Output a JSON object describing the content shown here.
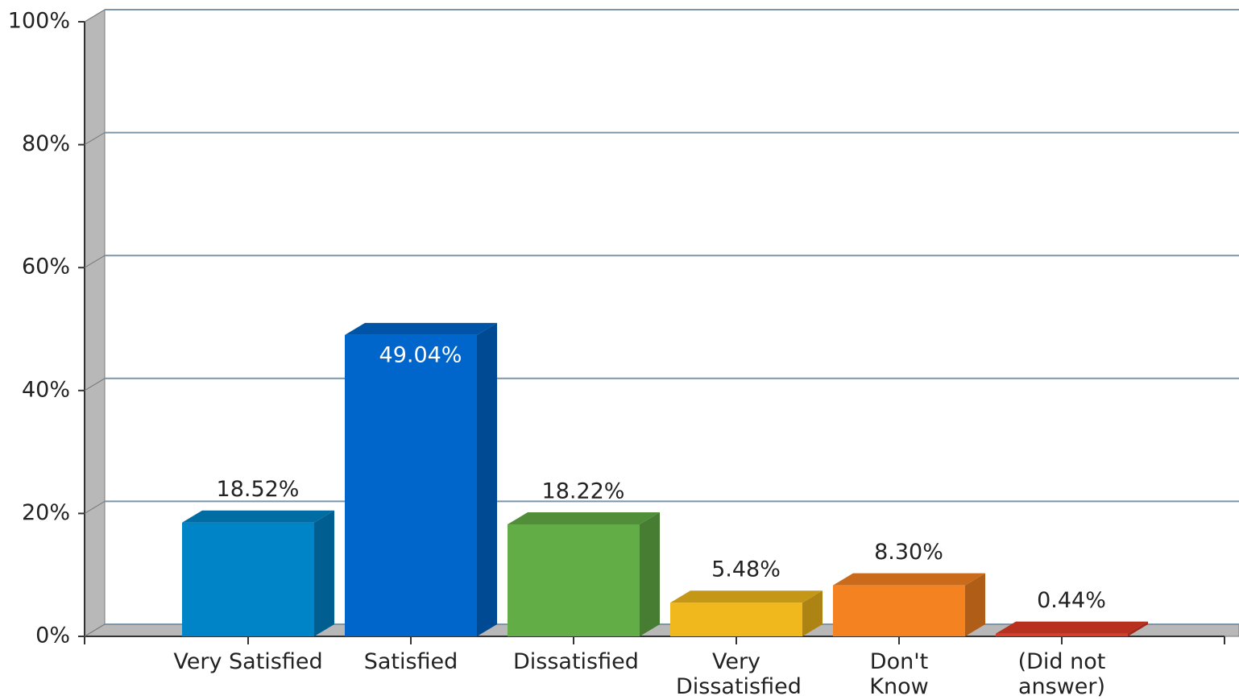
{
  "chart_data": {
    "type": "bar",
    "categories": [
      "Very Satisfied",
      "Satisfied",
      "Dissatisfied",
      "Very Dissatisfied",
      "Don't Know",
      "(Did not answer)"
    ],
    "values": [
      18.52,
      49.04,
      18.22,
      5.48,
      8.3,
      0.44
    ],
    "value_labels": [
      "18.52%",
      "49.04%",
      "18.22%",
      "5.48%",
      "8.30%",
      "0.44%"
    ],
    "colors": [
      "#0084c8",
      "#0066cc",
      "#62ad45",
      "#f0b81c",
      "#f58220",
      "#e03a24"
    ],
    "ylim": [
      0,
      100
    ],
    "yticks": [
      {
        "value": 0,
        "label": "0%"
      },
      {
        "value": 20,
        "label": "20%"
      },
      {
        "value": 40,
        "label": "40%"
      },
      {
        "value": 60,
        "label": "60%"
      },
      {
        "value": 80,
        "label": "80%"
      },
      {
        "value": 100,
        "label": "100%"
      }
    ],
    "grid": true
  }
}
